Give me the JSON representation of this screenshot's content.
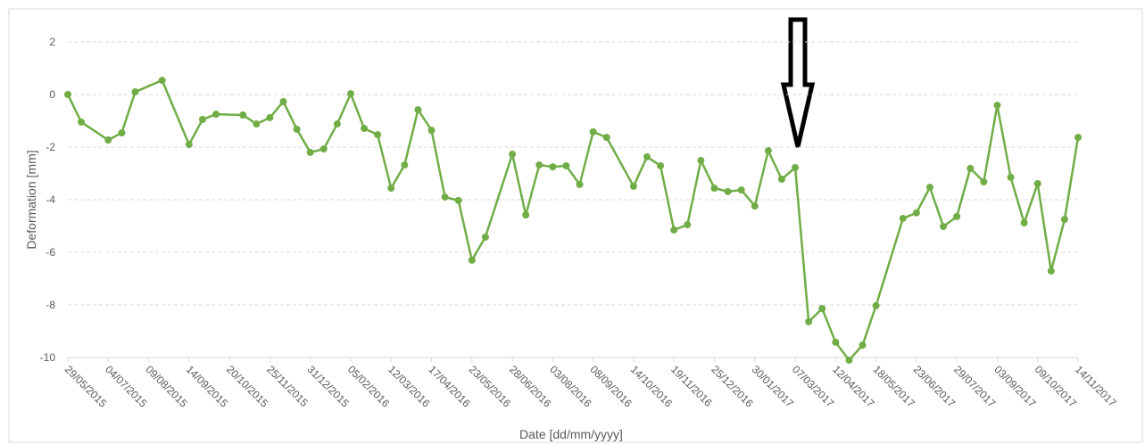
{
  "chart_data": {
    "type": "line",
    "x_label": "Date [dd/mm/yyyy]",
    "y_label": "Deformation [mm]",
    "x": [
      "29/05/2015",
      "10/06/2015",
      "04/07/2015",
      "16/07/2015",
      "28/07/2015",
      "21/08/2015",
      "14/09/2015",
      "26/09/2015",
      "08/10/2015",
      "01/11/2015",
      "13/11/2015",
      "25/11/2015",
      "07/12/2015",
      "19/12/2015",
      "31/12/2015",
      "12/01/2016",
      "24/01/2016",
      "05/02/2016",
      "17/02/2016",
      "29/02/2016",
      "12/03/2016",
      "24/03/2016",
      "05/04/2016",
      "17/04/2016",
      "29/04/2016",
      "11/05/2016",
      "23/05/2016",
      "04/06/2016",
      "28/06/2016",
      "10/07/2016",
      "22/07/2016",
      "03/08/2016",
      "15/08/2016",
      "27/08/2016",
      "08/09/2016",
      "20/09/2016",
      "14/10/2016",
      "26/10/2016",
      "07/11/2016",
      "19/11/2016",
      "01/12/2016",
      "13/12/2016",
      "25/12/2016",
      "06/01/2017",
      "18/01/2017",
      "30/01/2017",
      "11/02/2017",
      "23/02/2017",
      "07/03/2017",
      "19/03/2017",
      "31/03/2017",
      "12/04/2017",
      "24/04/2017",
      "06/05/2017",
      "18/05/2017",
      "11/06/2017",
      "23/06/2017",
      "05/07/2017",
      "17/07/2017",
      "29/07/2017",
      "10/08/2017",
      "22/08/2017",
      "03/09/2017",
      "15/09/2017",
      "27/09/2017",
      "09/10/2017",
      "21/10/2017",
      "02/11/2017",
      "14/11/2017"
    ],
    "series": [
      {
        "color": "#70ad47",
        "values": [
          0,
          -1.05,
          -1.73,
          -1.46,
          0.1,
          0.54,
          -1.9,
          -0.95,
          -0.75,
          -0.78,
          -1.12,
          -0.88,
          -0.27,
          -1.32,
          -2.2,
          -2.07,
          -1.12,
          0.03,
          -1.29,
          -1.53,
          -3.56,
          -2.68,
          -0.58,
          -1.36,
          -3.9,
          -4.03,
          -6.3,
          -5.42,
          -2.27,
          -4.58,
          -2.68,
          -2.75,
          -2.71,
          -3.42,
          -1.42,
          -1.63,
          -3.49,
          -2.37,
          -2.71,
          -5.15,
          -4.95,
          -2.51,
          -3.56,
          -3.69,
          -3.63,
          -4.24,
          -2.14,
          -3.22,
          -2.78,
          -8.64,
          -8.14,
          -9.42,
          -10.1,
          -9.53,
          -8.03,
          -4.71,
          -4.5,
          -3.53,
          -5.02,
          -4.64,
          -2.81,
          -3.32,
          -0.41,
          -3.15,
          -4.88,
          -3.39,
          -6.71,
          -4.75,
          -1.63
        ]
      }
    ],
    "xlim": [
      "29/05/2015",
      "14/11/2017"
    ],
    "xticks": [
      "29/05/2015",
      "04/07/2015",
      "09/08/2015",
      "14/09/2015",
      "20/10/2015",
      "25/11/2015",
      "31/12/2015",
      "05/02/2016",
      "12/03/2016",
      "17/04/2016",
      "23/05/2016",
      "28/06/2016",
      "03/08/2016",
      "08/09/2016",
      "14/10/2016",
      "19/11/2016",
      "25/12/2016",
      "30/01/2017",
      "07/03/2017",
      "12/04/2017",
      "18/05/2017",
      "23/06/2017",
      "29/07/2017",
      "03/09/2017",
      "09/10/2017",
      "14/11/2017"
    ],
    "ylim": [
      -10,
      2
    ],
    "yticks": [
      -10,
      -8,
      -6,
      -4,
      -2,
      0,
      2
    ],
    "grid": true
  }
}
